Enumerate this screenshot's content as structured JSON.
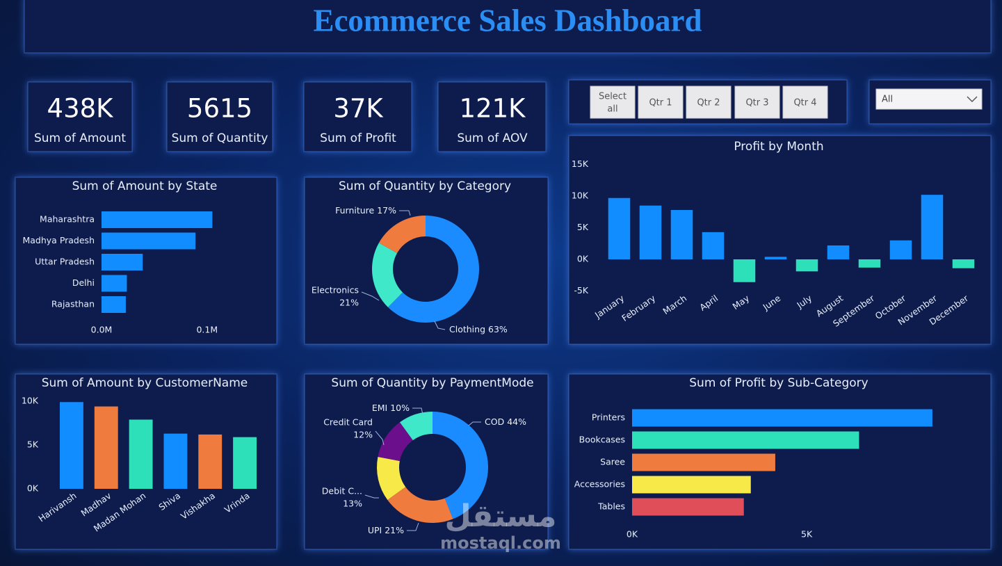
{
  "header": {
    "title": "Ecommerce Sales Dashboard"
  },
  "kpis": [
    {
      "value": "438K",
      "label": "Sum of Amount"
    },
    {
      "value": "5615",
      "label": "Sum of Quantity"
    },
    {
      "value": "37K",
      "label": "Sum of Profit"
    },
    {
      "value": "121K",
      "label": "Sum of AOV"
    }
  ],
  "slicer": {
    "buttons": [
      [
        "Select",
        "all"
      ],
      [
        "Qtr 1"
      ],
      [
        "Qtr 2"
      ],
      [
        "Qtr 3"
      ],
      [
        "Qtr 4"
      ]
    ],
    "dropdown": "All"
  },
  "chart_data": [
    {
      "type": "bar",
      "orientation": "horizontal",
      "title": "Sum of Amount by State",
      "categories": [
        "Maharashtra",
        "Madhya Pradesh",
        "Uttar Pradesh",
        "Delhi",
        "Rajasthan"
      ],
      "values": [
        0.105,
        0.089,
        0.039,
        0.024,
        0.023
      ],
      "color": "#118dff",
      "xlim": [
        0,
        0.11
      ],
      "xticks": [
        {
          "value": 0,
          "label": "0.0M"
        },
        {
          "value": 0.1,
          "label": "0.1M"
        }
      ]
    },
    {
      "type": "pie",
      "hole": 0.61,
      "title": "Sum of Quantity by Category",
      "categories": [
        "Clothing",
        "Electronics",
        "Furniture"
      ],
      "values": [
        63,
        21,
        17
      ],
      "value_labels": [
        "63%",
        "21%",
        "17%"
      ],
      "colors": [
        "#1a8cff",
        "#3ee8c8",
        "#f07b3f"
      ]
    },
    {
      "type": "bar",
      "title": "Profit by Month",
      "categories": [
        "January",
        "February",
        "March",
        "April",
        "May",
        "June",
        "July",
        "August",
        "September",
        "October",
        "November",
        "December"
      ],
      "values": [
        9700,
        8500,
        7800,
        4300,
        -3600,
        400,
        -1900,
        2200,
        -1300,
        3000,
        10200,
        -1400
      ],
      "color": "#118dff",
      "negative_color": "#2de0b9",
      "ylim": [
        -5000,
        15000
      ],
      "yticks": [
        {
          "value": -5000,
          "label": "-5K"
        },
        {
          "value": 0,
          "label": "0K"
        },
        {
          "value": 5000,
          "label": "5K"
        },
        {
          "value": 10000,
          "label": "10K"
        },
        {
          "value": 15000,
          "label": "15K"
        }
      ]
    },
    {
      "type": "bar",
      "title": "Sum of Amount by CustomerName",
      "categories": [
        "Harivansh",
        "Madhav",
        "Madan Mohan",
        "Shiva",
        "Vishakha",
        "Vrinda"
      ],
      "values": [
        9900,
        9400,
        7900,
        6300,
        6200,
        5900
      ],
      "colors": [
        "#118dff",
        "#f07b3f",
        "#2de0b9",
        "#118dff",
        "#f07b3f",
        "#2de0b9"
      ],
      "ylim": [
        0,
        10000
      ],
      "yticks": [
        {
          "value": 0,
          "label": "0K"
        },
        {
          "value": 5000,
          "label": "5K"
        },
        {
          "value": 10000,
          "label": "10K"
        }
      ]
    },
    {
      "type": "pie",
      "hole": 0.6,
      "title": "Sum of Quantity by PaymentMode",
      "categories": [
        "COD",
        "UPI",
        "Debit C...",
        "Credit Card",
        "EMI"
      ],
      "values": [
        44,
        21,
        13,
        12,
        10
      ],
      "value_labels": [
        "44%",
        "21%",
        "13%",
        "12%",
        "10%"
      ],
      "colors": [
        "#1a8cff",
        "#f07b3f",
        "#f7ea48",
        "#6c0f8c",
        "#3ee8c8"
      ]
    },
    {
      "type": "bar",
      "orientation": "horizontal",
      "title": "Sum of Profit by Sub-Category",
      "categories": [
        "Printers",
        "Bookcases",
        "Saree",
        "Accessories",
        "Tables"
      ],
      "values": [
        8600,
        6500,
        4100,
        3400,
        3200
      ],
      "colors": [
        "#118dff",
        "#2de0b9",
        "#f07b3f",
        "#f7ea48",
        "#e04e5a"
      ],
      "xlim": [
        0,
        9000
      ],
      "xticks": [
        {
          "value": 0,
          "label": "0K"
        },
        {
          "value": 5000,
          "label": "5K"
        }
      ]
    }
  ],
  "watermark": {
    "text": "مستقل",
    "url": "mostaql.com"
  }
}
